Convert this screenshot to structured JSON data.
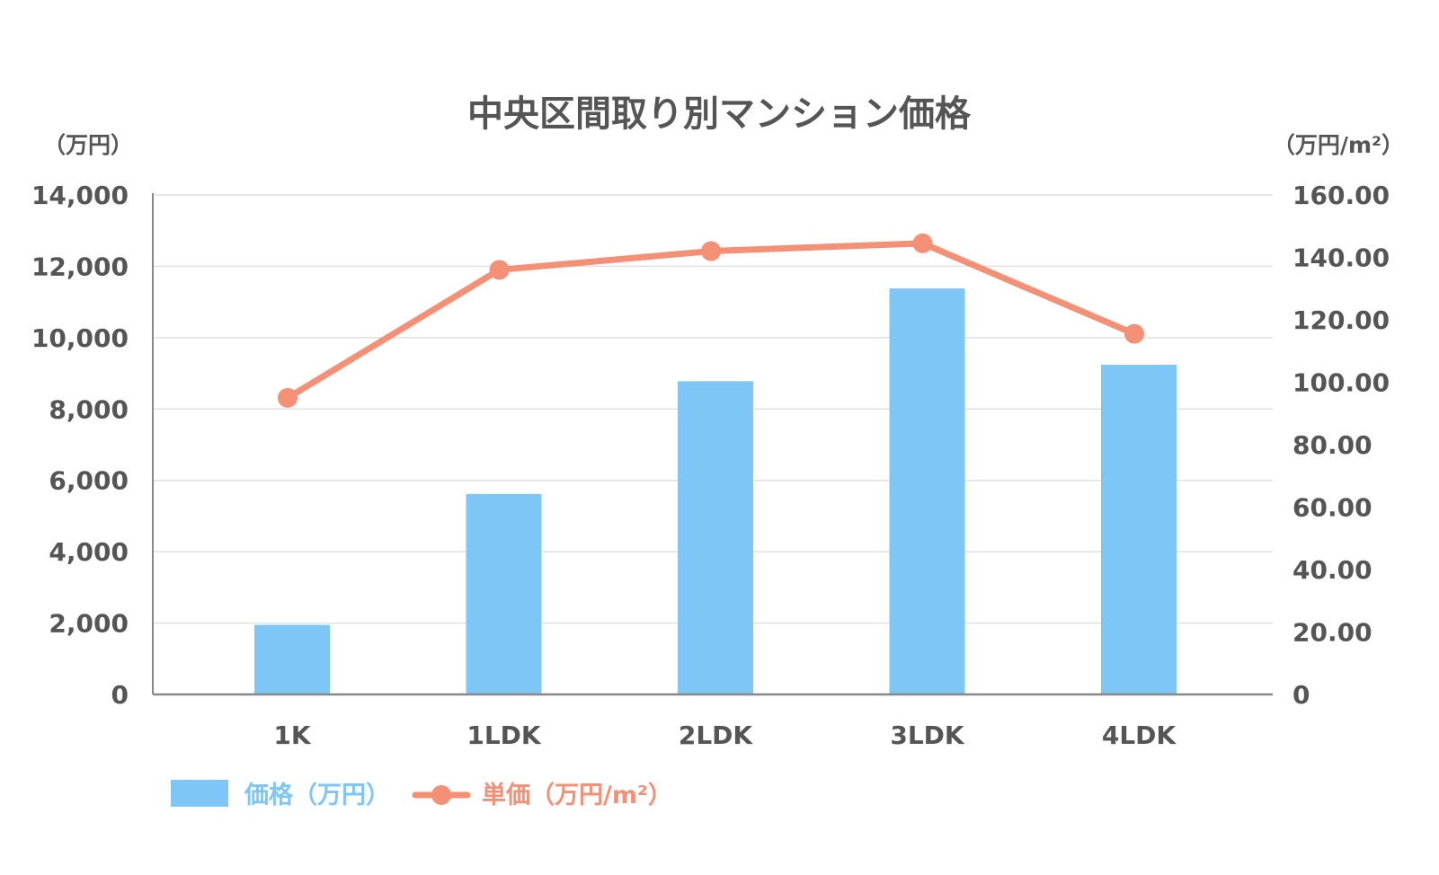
{
  "chart_data": {
    "type": "bar",
    "title": "中央区間取り別マンション価格",
    "categories": [
      "1K",
      "1LDK",
      "2LDK",
      "3LDK",
      "4LDK"
    ],
    "series": [
      {
        "name": "価格（万円）",
        "type": "bar",
        "axis": "left",
        "color": "#7dc6f5",
        "values": [
          1950,
          5620,
          8780,
          11380,
          9240
        ]
      },
      {
        "name": "単価（万円/m²）",
        "type": "line",
        "axis": "right",
        "color": "#f39075",
        "values": [
          95.0,
          136.0,
          142.0,
          144.5,
          115.5
        ]
      }
    ],
    "y_left": {
      "unit_label": "（万円）",
      "range": [
        0,
        14000
      ],
      "ticks": [
        0,
        2000,
        4000,
        6000,
        8000,
        10000,
        12000,
        14000
      ],
      "tick_labels": [
        "0",
        "2,000",
        "4,000",
        "6,000",
        "8,000",
        "10,000",
        "12,000",
        "14,000"
      ]
    },
    "y_right": {
      "unit_label": "（万円/m²）",
      "range": [
        0,
        160
      ],
      "ticks": [
        0,
        20,
        40,
        60,
        80,
        100,
        120,
        140,
        160
      ],
      "tick_labels": [
        "0",
        "20.00",
        "40.00",
        "60.00",
        "80.00",
        "100.00",
        "120.00",
        "140.00",
        "160.00"
      ]
    },
    "grid": true,
    "legend_position": "bottom-left",
    "colors": {
      "title": "#555555",
      "axis_text": "#555555",
      "grid": "#e1e1e1",
      "axis_line": "#888888"
    }
  }
}
